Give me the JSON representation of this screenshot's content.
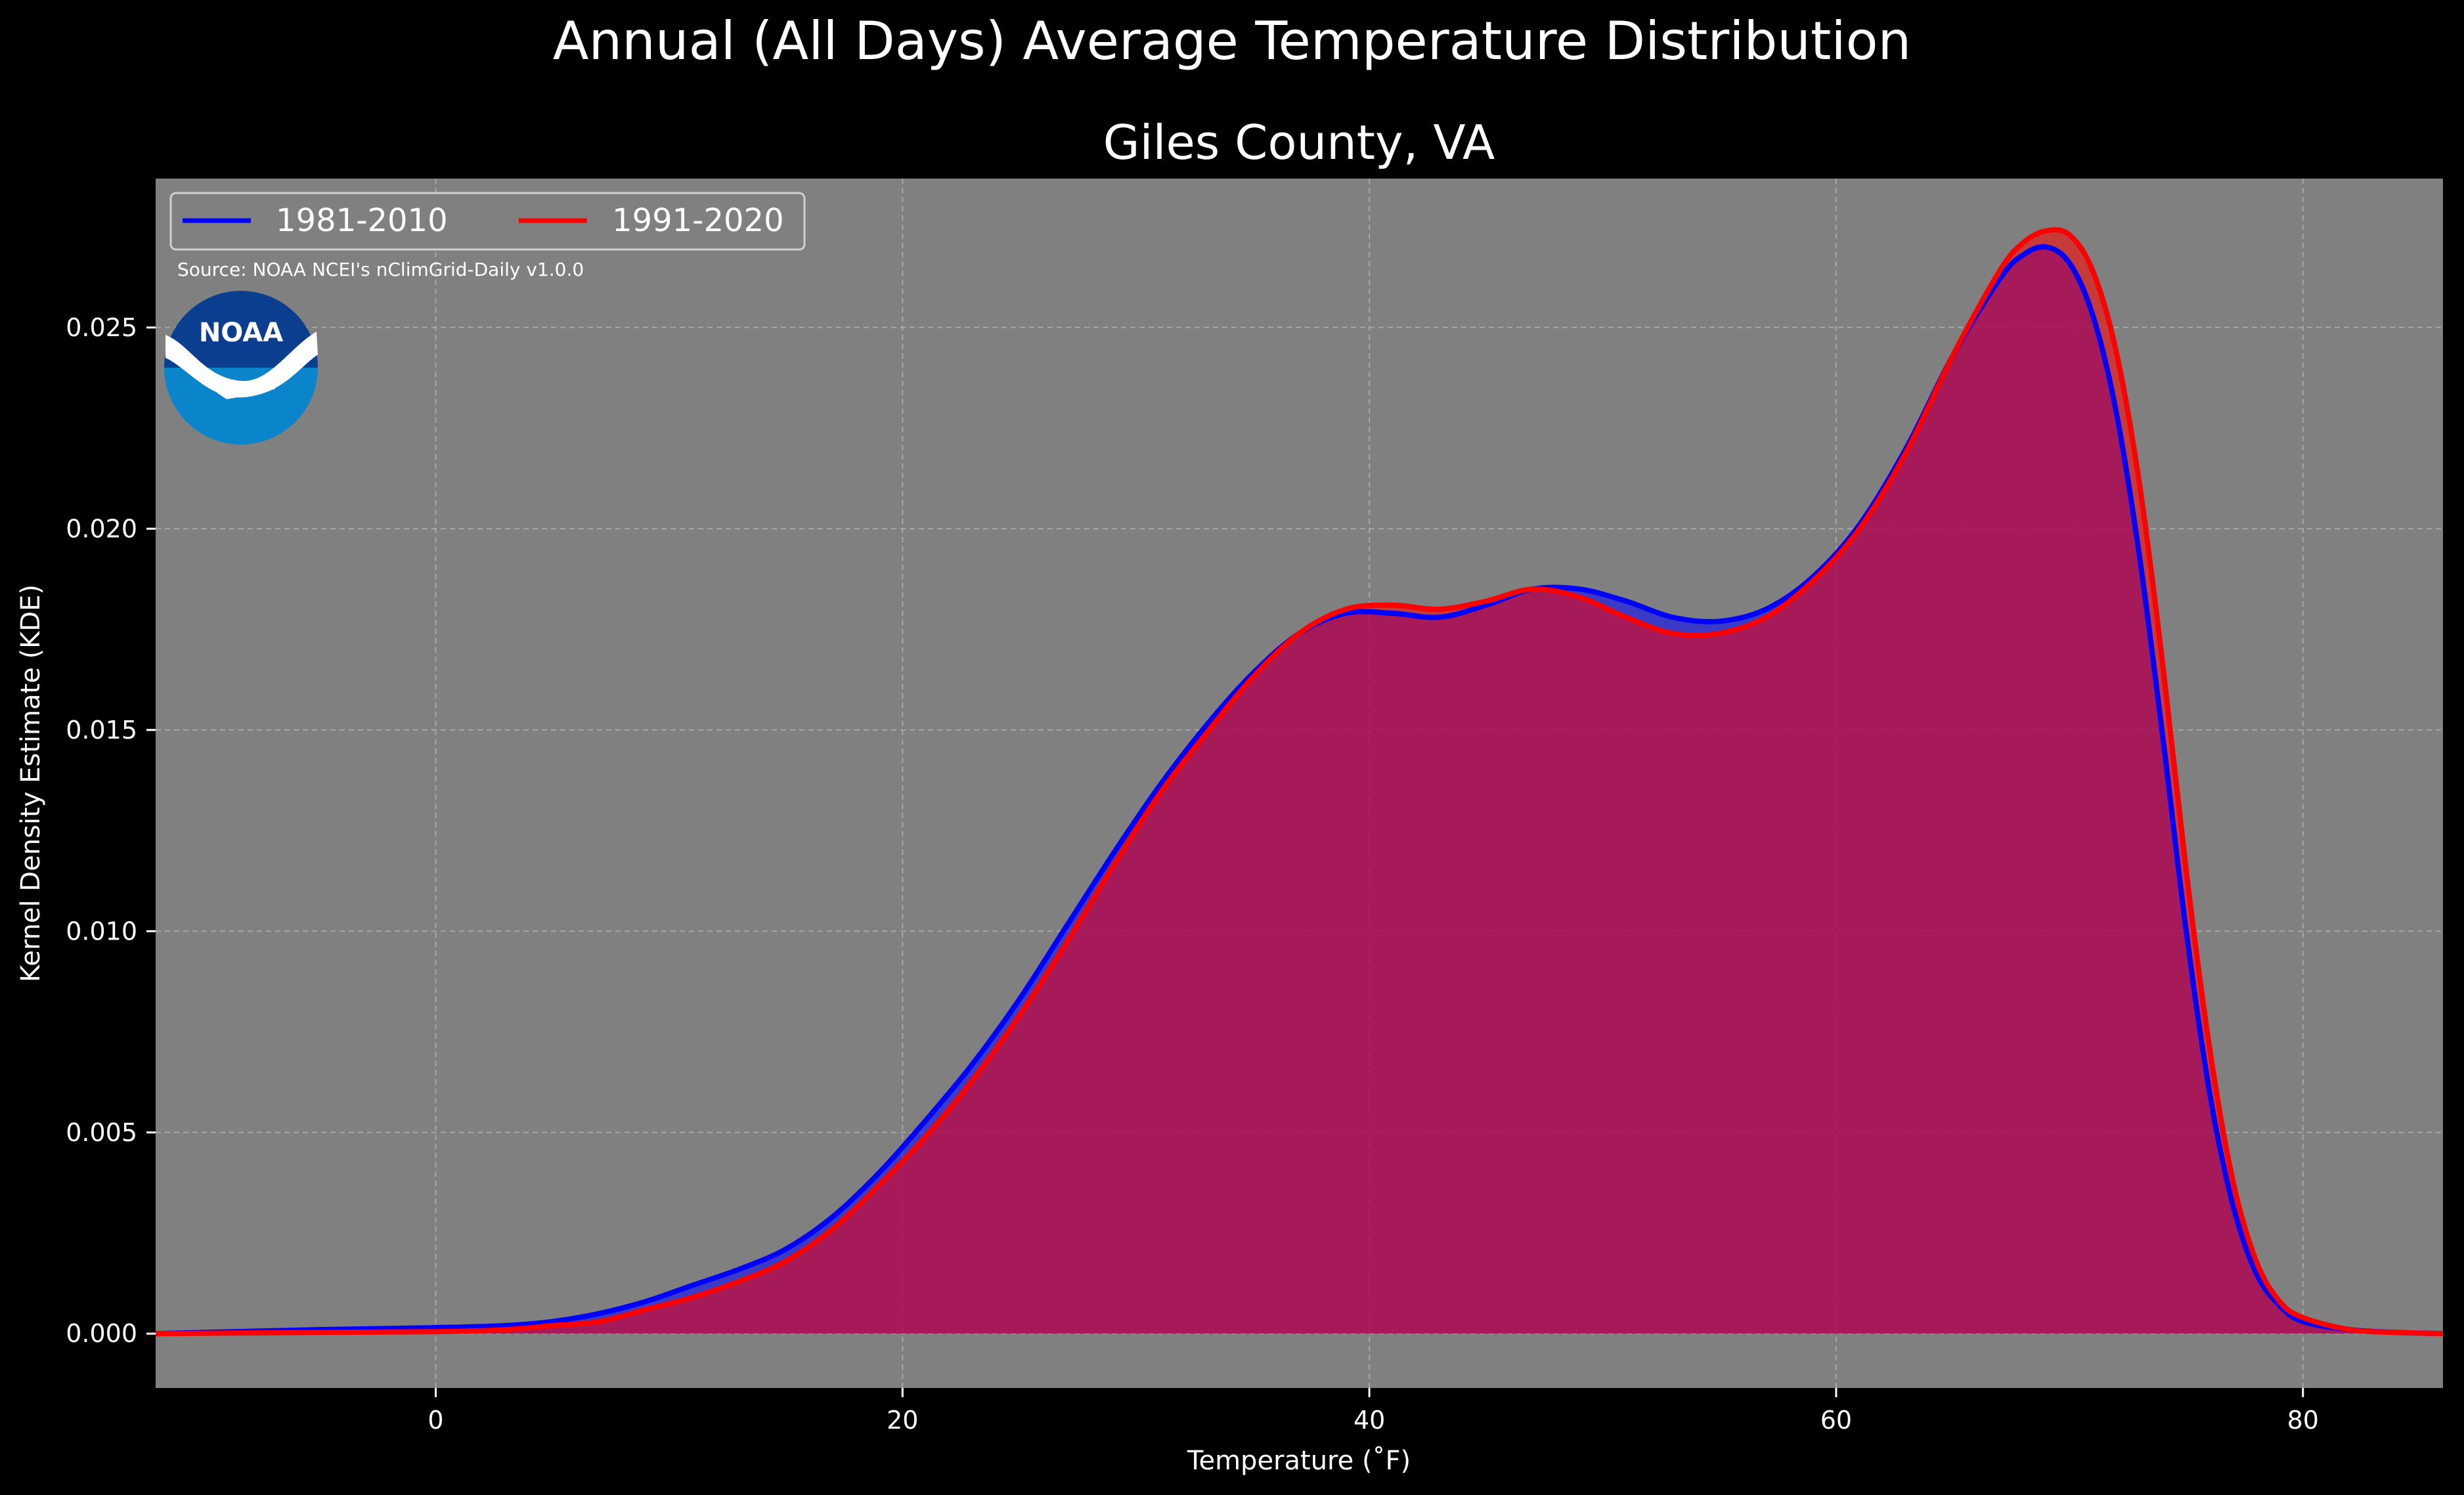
{
  "chart_data": {
    "type": "area",
    "suptitle": "Annual (All Days) Average Temperature Distribution",
    "title": "Giles County, VA",
    "xlabel": "Temperature (˚F)",
    "ylabel": "Kernel Density Estimate (KDE)",
    "source": "Source: NOAA NCEI's nClimGrid-Daily v1.0.0",
    "logo_text": "NOAA",
    "xlim": [
      -12,
      86
    ],
    "ylim": [
      -0.00135,
      0.0287
    ],
    "xticks": [
      0,
      20,
      40,
      60,
      80
    ],
    "yticks": [
      0.0,
      0.005,
      0.01,
      0.015,
      0.02,
      0.025
    ],
    "ytick_labels": [
      "0.000",
      "0.005",
      "0.010",
      "0.015",
      "0.020",
      "0.025"
    ],
    "grid": true,
    "legend_position": "top-left",
    "background": "#808080",
    "x": [
      -12,
      -5,
      0,
      3,
      5,
      7,
      9,
      11,
      13,
      15,
      17,
      19,
      21,
      23,
      25,
      27,
      29,
      31,
      33,
      35,
      37,
      39,
      41,
      43,
      45,
      47,
      49,
      51,
      53,
      55,
      57,
      59,
      61,
      63,
      65,
      67,
      68,
      69,
      70,
      71,
      72,
      73,
      74,
      75,
      76,
      77,
      78,
      79,
      80,
      82,
      84,
      86
    ],
    "series": [
      {
        "name": "1981-2010",
        "color": "#0000ff",
        "values": [
          0.0,
          0.0001,
          0.00015,
          0.0002,
          0.0003,
          0.0005,
          0.0008,
          0.0012,
          0.0016,
          0.0021,
          0.0029,
          0.004,
          0.0053,
          0.0067,
          0.0083,
          0.0101,
          0.0119,
          0.0136,
          0.0151,
          0.0164,
          0.0174,
          0.0179,
          0.0179,
          0.0178,
          0.0181,
          0.0185,
          0.0185,
          0.0182,
          0.0178,
          0.0177,
          0.018,
          0.0188,
          0.0201,
          0.022,
          0.0243,
          0.0262,
          0.0268,
          0.027,
          0.0266,
          0.0253,
          0.0229,
          0.0193,
          0.0148,
          0.01,
          0.006,
          0.0032,
          0.0015,
          0.0007,
          0.0003,
          0.0001,
          3e-05,
          0.0
        ]
      },
      {
        "name": "1991-2020",
        "color": "#ff0000",
        "values": [
          0.0,
          3e-05,
          5e-05,
          0.0001,
          0.0002,
          0.0003,
          0.0006,
          0.0009,
          0.0013,
          0.0018,
          0.0026,
          0.0037,
          0.0049,
          0.0063,
          0.0079,
          0.0097,
          0.0116,
          0.0134,
          0.0149,
          0.0163,
          0.0174,
          0.018,
          0.0181,
          0.018,
          0.0182,
          0.0185,
          0.0183,
          0.0178,
          0.0174,
          0.0174,
          0.0178,
          0.0187,
          0.02,
          0.0219,
          0.0243,
          0.0264,
          0.0271,
          0.0274,
          0.0273,
          0.0264,
          0.0244,
          0.0211,
          0.0166,
          0.0115,
          0.0071,
          0.0038,
          0.0018,
          0.0008,
          0.0004,
          0.0001,
          3e-05,
          0.0
        ]
      }
    ]
  }
}
